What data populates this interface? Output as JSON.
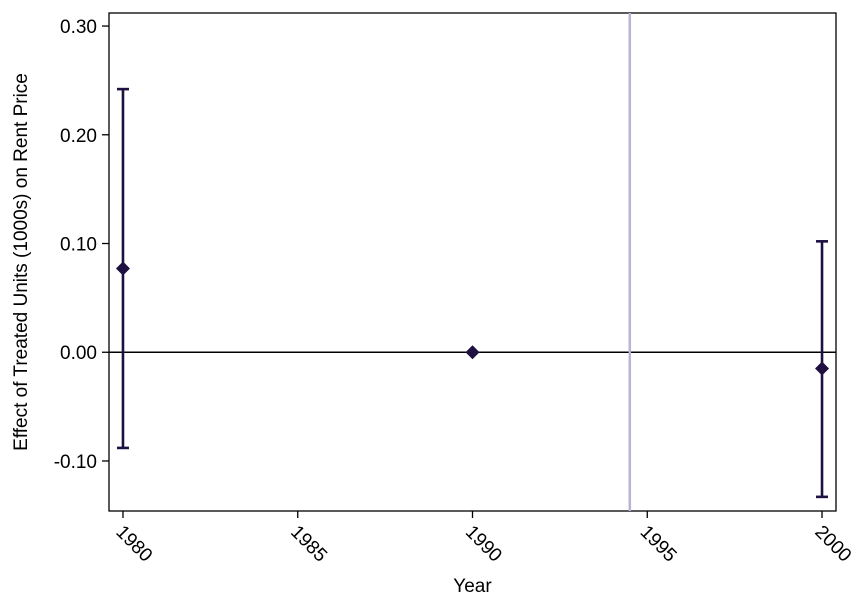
{
  "chart_data": {
    "type": "scatter",
    "xlabel": "Year",
    "ylabel": "Effect of Treated Units (1000s) on Rent Price",
    "xlim": [
      1979.6,
      2000.4
    ],
    "ylim": [
      -0.146,
      0.312
    ],
    "x_ticks": [
      1980,
      1985,
      1990,
      1995,
      2000
    ],
    "x_tick_labels": [
      "1980",
      "1985",
      "1990",
      "1995",
      "2000"
    ],
    "y_ticks": [
      -0.1,
      0.0,
      0.1,
      0.2,
      0.3
    ],
    "y_tick_labels": [
      "-0.10",
      "0.00",
      "0.10",
      "0.20",
      "0.30"
    ],
    "grid": false,
    "points": [
      {
        "x": 1980,
        "y": 0.077,
        "ci_low": -0.088,
        "ci_high": 0.242
      },
      {
        "x": 1990,
        "y": 0.0,
        "ci_low": null,
        "ci_high": null
      },
      {
        "x": 2000,
        "y": -0.015,
        "ci_low": -0.133,
        "ci_high": 0.102
      }
    ],
    "reference_lines": [
      {
        "orientation": "horizontal",
        "value": 0.0,
        "color": "#000000"
      },
      {
        "orientation": "vertical",
        "value": 1994.5,
        "color": "#b8b4d6"
      }
    ],
    "marker_color": "#1e1040",
    "marker_shape": "diamond"
  }
}
